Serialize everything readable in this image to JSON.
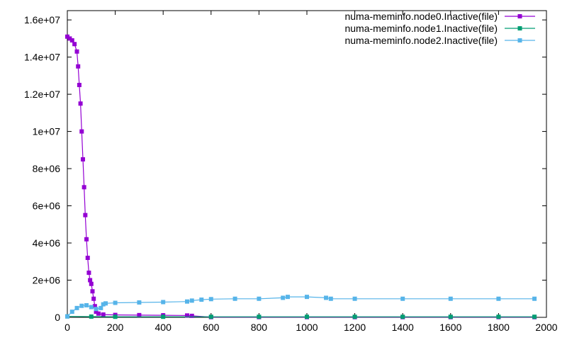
{
  "chart_data": {
    "type": "line",
    "title": "",
    "xlabel": "",
    "ylabel": "",
    "xlim": [
      0,
      2000
    ],
    "ylim": [
      0,
      16500000
    ],
    "grid": false,
    "legend_position": "top-right",
    "x_ticks": [
      {
        "value": 0,
        "label": "0"
      },
      {
        "value": 200,
        "label": "200"
      },
      {
        "value": 400,
        "label": "400"
      },
      {
        "value": 600,
        "label": "600"
      },
      {
        "value": 800,
        "label": "800"
      },
      {
        "value": 1000,
        "label": "1000"
      },
      {
        "value": 1200,
        "label": "1200"
      },
      {
        "value": 1400,
        "label": "1400"
      },
      {
        "value": 1600,
        "label": "1600"
      },
      {
        "value": 1800,
        "label": "1800"
      },
      {
        "value": 2000,
        "label": "2000"
      }
    ],
    "y_ticks": [
      {
        "value": 0,
        "label": "0"
      },
      {
        "value": 2000000,
        "label": "2e+06"
      },
      {
        "value": 4000000,
        "label": "4e+06"
      },
      {
        "value": 6000000,
        "label": "6e+06"
      },
      {
        "value": 8000000,
        "label": "8e+06"
      },
      {
        "value": 10000000,
        "label": "1e+07"
      },
      {
        "value": 12000000,
        "label": "1.2e+07"
      },
      {
        "value": 14000000,
        "label": "1.4e+07"
      },
      {
        "value": 16000000,
        "label": "1.6e+07"
      }
    ],
    "series": [
      {
        "name": "numa-meminfo.node0.Inactive(file)",
        "color": "#9400d3",
        "points": [
          [
            0,
            15100000
          ],
          [
            10,
            15000000
          ],
          [
            20,
            14900000
          ],
          [
            30,
            14700000
          ],
          [
            40,
            14300000
          ],
          [
            45,
            13500000
          ],
          [
            50,
            12500000
          ],
          [
            55,
            11500000
          ],
          [
            60,
            10000000
          ],
          [
            65,
            8500000
          ],
          [
            70,
            7000000
          ],
          [
            75,
            5500000
          ],
          [
            80,
            4200000
          ],
          [
            85,
            3200000
          ],
          [
            90,
            2400000
          ],
          [
            95,
            2000000
          ],
          [
            100,
            1800000
          ],
          [
            105,
            1400000
          ],
          [
            110,
            1000000
          ],
          [
            115,
            600000
          ],
          [
            120,
            300000
          ],
          [
            130,
            200000
          ],
          [
            150,
            150000
          ],
          [
            200,
            130000
          ],
          [
            300,
            120000
          ],
          [
            400,
            110000
          ],
          [
            500,
            100000
          ],
          [
            520,
            80000
          ],
          [
            600,
            10000
          ],
          [
            800,
            10000
          ],
          [
            1000,
            10000
          ],
          [
            1200,
            10000
          ],
          [
            1400,
            10000
          ],
          [
            1600,
            10000
          ],
          [
            1800,
            10000
          ],
          [
            1950,
            10000
          ]
        ]
      },
      {
        "name": "numa-meminfo.node1.Inactive(file)",
        "color": "#009e73",
        "points": [
          [
            0,
            50000
          ],
          [
            100,
            40000
          ],
          [
            200,
            30000
          ],
          [
            400,
            30000
          ],
          [
            600,
            30000
          ],
          [
            800,
            30000
          ],
          [
            1000,
            30000
          ],
          [
            1200,
            30000
          ],
          [
            1400,
            30000
          ],
          [
            1600,
            30000
          ],
          [
            1800,
            30000
          ],
          [
            1950,
            30000
          ]
        ]
      },
      {
        "name": "numa-meminfo.node2.Inactive(file)",
        "color": "#56b4e9",
        "points": [
          [
            0,
            50000
          ],
          [
            20,
            300000
          ],
          [
            40,
            500000
          ],
          [
            60,
            620000
          ],
          [
            80,
            650000
          ],
          [
            100,
            550000
          ],
          [
            120,
            450000
          ],
          [
            140,
            500000
          ],
          [
            150,
            700000
          ],
          [
            160,
            750000
          ],
          [
            200,
            780000
          ],
          [
            300,
            800000
          ],
          [
            400,
            820000
          ],
          [
            500,
            850000
          ],
          [
            520,
            900000
          ],
          [
            560,
            950000
          ],
          [
            600,
            980000
          ],
          [
            700,
            1000000
          ],
          [
            800,
            1000000
          ],
          [
            900,
            1050000
          ],
          [
            920,
            1100000
          ],
          [
            1000,
            1100000
          ],
          [
            1080,
            1050000
          ],
          [
            1100,
            1000000
          ],
          [
            1200,
            1000000
          ],
          [
            1400,
            1000000
          ],
          [
            1600,
            1000000
          ],
          [
            1800,
            1000000
          ],
          [
            1950,
            1000000
          ]
        ]
      }
    ]
  }
}
